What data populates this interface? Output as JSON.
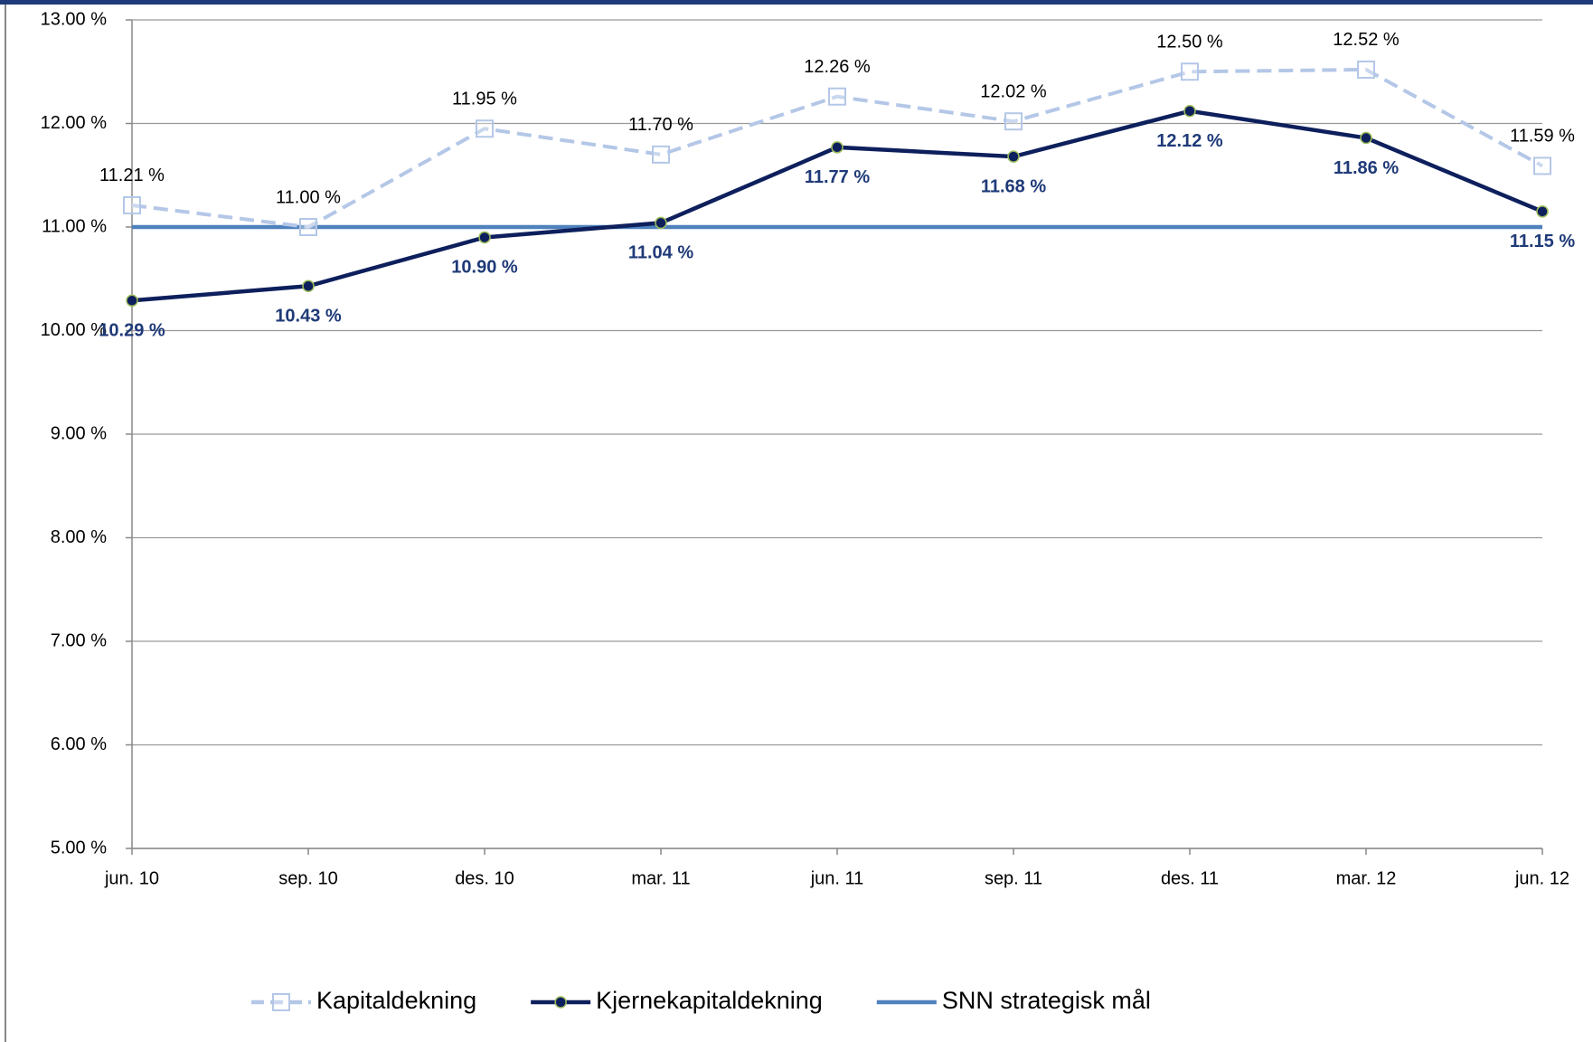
{
  "chart_data": {
    "type": "line",
    "categories": [
      "jun. 10",
      "sep. 10",
      "des. 10",
      "mar. 11",
      "jun. 11",
      "sep. 11",
      "des. 11",
      "mar. 12",
      "jun. 12"
    ],
    "series": [
      {
        "name": "Kapitaldekning",
        "color": "#b4c7e7",
        "dash": true,
        "marker": "square",
        "label_position": "above",
        "values": [
          11.21,
          11.0,
          11.95,
          11.7,
          12.26,
          12.02,
          12.5,
          12.52,
          11.59
        ],
        "value_labels": [
          "11.21 %",
          "11.00 %",
          "11.95 %",
          "11.70 %",
          "12.26 %",
          "12.02 %",
          "12.50 %",
          "12.52 %",
          "11.59 %"
        ]
      },
      {
        "name": "Kjernekapitaldekning",
        "color": "#0d1f5c",
        "dash": false,
        "marker": "circle",
        "label_position": "below",
        "values": [
          10.29,
          10.43,
          10.9,
          11.04,
          11.77,
          11.68,
          12.12,
          11.86,
          11.15
        ],
        "value_labels": [
          "10.29 %",
          "10.43 %",
          "10.90 %",
          "11.04 %",
          "11.77 %",
          "11.68 %",
          "12.12 %",
          "11.86 %",
          "11.15 %"
        ]
      },
      {
        "name": "SNN strategisk mål",
        "color": "#4f81bd",
        "dash": false,
        "marker": "none",
        "values": [
          11,
          11,
          11,
          11,
          11,
          11,
          11,
          11,
          11
        ]
      }
    ],
    "ylim": [
      5,
      13
    ],
    "yticks": [
      {
        "value": 5,
        "label": "5.00 %"
      },
      {
        "value": 6,
        "label": "6.00 %"
      },
      {
        "value": 7,
        "label": "7.00 %"
      },
      {
        "value": 8,
        "label": "8.00 %"
      },
      {
        "value": 9,
        "label": "9.00 %"
      },
      {
        "value": 10,
        "label": "10.00 %"
      },
      {
        "value": 11,
        "label": "11.00 %"
      },
      {
        "value": 12,
        "label": "12.00 %"
      },
      {
        "value": 13,
        "label": "13.00 %"
      }
    ],
    "grid": true,
    "legend": "bottom"
  }
}
